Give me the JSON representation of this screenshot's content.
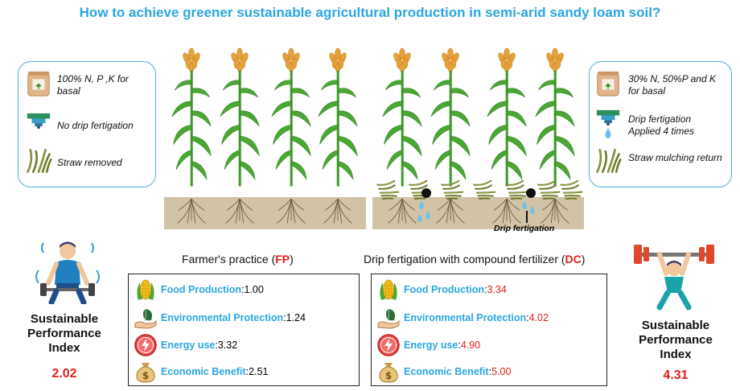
{
  "title": "How to achieve greener sustainable agricultural production in semi-arid sandy loam soil?",
  "left_panel": {
    "items": [
      {
        "icon": "fertilizer-bag-icon",
        "label": "100% N, P ,K for basal"
      },
      {
        "icon": "dripper-off-icon",
        "label": "No drip fertigation"
      },
      {
        "icon": "straw-icon",
        "label": "Straw removed"
      }
    ]
  },
  "right_panel": {
    "items": [
      {
        "icon": "fertilizer-bag-icon",
        "label": "30% N, 50%P and K for basal"
      },
      {
        "icon": "dripper-on-icon",
        "label": "Drip fertigation Applied 4 times"
      },
      {
        "icon": "straw-icon",
        "label": "Straw mulching return"
      }
    ]
  },
  "drip_label": "Drip fertigation",
  "fp": {
    "title_prefix": "Farmer's practice (",
    "title_abbr": "FP",
    "title_suffix": ")",
    "metrics": [
      {
        "icon": "corn-icon",
        "name": "Food Production",
        "value": "1.00"
      },
      {
        "icon": "leaf-hand-icon",
        "name": "Environmental Protection",
        "value": "1.24"
      },
      {
        "icon": "energy-icon",
        "name": "Energy use",
        "value": "3.32"
      },
      {
        "icon": "money-bag-icon",
        "name": "Economic Benefit",
        "value": "2.51"
      }
    ],
    "spi_label": "Sustainable Performance Index",
    "spi_value": "2.02"
  },
  "dc": {
    "title_prefix": "Drip fertigation with compound fertilizer (",
    "title_abbr": "DC",
    "title_suffix": ")",
    "metrics": [
      {
        "icon": "corn-icon",
        "name": "Food Production",
        "value": "3.34"
      },
      {
        "icon": "leaf-hand-icon",
        "name": "Environmental Protection",
        "value": "4.02"
      },
      {
        "icon": "energy-icon",
        "name": "Energy use",
        "value": "4.90"
      },
      {
        "icon": "money-bag-icon",
        "name": "Economic Benefit",
        "value": "5.00"
      }
    ],
    "spi_label": "Sustainable Performance Index",
    "spi_value": "4.31"
  },
  "colors": {
    "title": "#2aa6e0",
    "metric_name": "#2aa6e0",
    "highlight": "#e0201b",
    "soil": "#d2c2a6",
    "plant": "#3f9a2a"
  }
}
